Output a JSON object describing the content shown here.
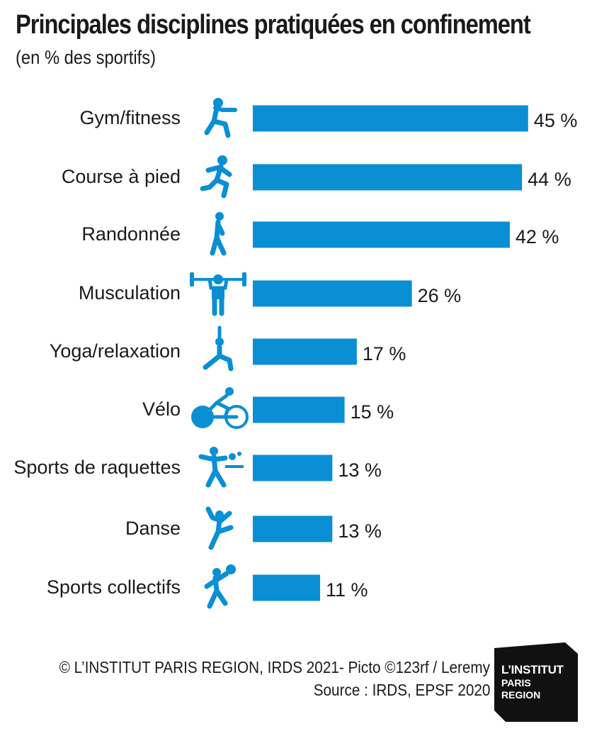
{
  "chart_data": {
    "type": "bar",
    "orientation": "horizontal",
    "title": "Principales disciplines pratiquées en confinement",
    "subtitle": "(en % des sportifs)",
    "categories": [
      "Gym/fitness",
      "Course à pied",
      "Randonnée",
      "Musculation",
      "Yoga/relaxation",
      "Vélo",
      "Sports de raquettes",
      "Danse",
      "Sports collectifs"
    ],
    "values": [
      45,
      44,
      42,
      26,
      17,
      15,
      13,
      13,
      11
    ],
    "value_labels": [
      "45 %",
      "44 %",
      "42 %",
      "26 %",
      "17 %",
      "15 %",
      "13 %",
      "13 %",
      "11 %"
    ],
    "icons": [
      "fitness-icon",
      "running-icon",
      "hiking-icon",
      "weightlifting-icon",
      "yoga-icon",
      "cycling-icon",
      "table-tennis-icon",
      "dance-icon",
      "team-sports-icon"
    ],
    "bar_color": "#0a8fd4",
    "grid": false,
    "legend": "none"
  },
  "credits": {
    "line1": "© L’INSTITUT PARIS REGION, IRDS 2021- Picto ©123rf / Leremy",
    "line2": "Source : IRDS, EPSF 2020"
  },
  "logo": {
    "line1": "L’INSTITUT",
    "line2": "PARIS",
    "line3": "REGION",
    "color": "#111111"
  }
}
